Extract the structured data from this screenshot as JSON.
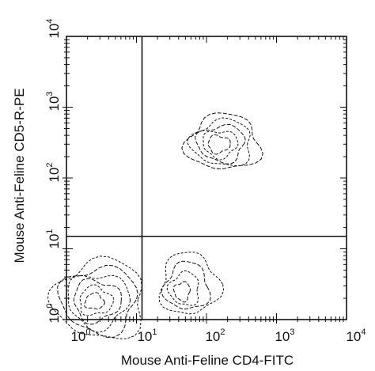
{
  "chart_data": {
    "type": "contour",
    "xlabel": "Mouse Anti-Feline CD4-FITC",
    "ylabel": "Mouse Anti-Feline CD5-R-PE",
    "x_scale": "log",
    "y_scale": "log",
    "xlim": [
      1,
      10000
    ],
    "ylim": [
      1,
      10000
    ],
    "x_ticks": [
      {
        "base": "10",
        "exp": "0"
      },
      {
        "base": "10",
        "exp": "1"
      },
      {
        "base": "10",
        "exp": "2"
      },
      {
        "base": "10",
        "exp": "3"
      },
      {
        "base": "10",
        "exp": "4"
      }
    ],
    "y_ticks": [
      {
        "base": "10",
        "exp": "0"
      },
      {
        "base": "10",
        "exp": "1"
      },
      {
        "base": "10",
        "exp": "2"
      },
      {
        "base": "10",
        "exp": "3"
      },
      {
        "base": "10",
        "exp": "4"
      }
    ],
    "quadrant_gate": {
      "x": 12,
      "y": 15
    },
    "populations": [
      {
        "center_x": 2.5,
        "center_y": 1.8,
        "levels": 6
      },
      {
        "center_x": 150,
        "center_y": 300,
        "levels": 5
      },
      {
        "center_x": 45,
        "center_y": 2.5,
        "levels": 4
      }
    ],
    "grid": false,
    "line_color": "#111111"
  }
}
